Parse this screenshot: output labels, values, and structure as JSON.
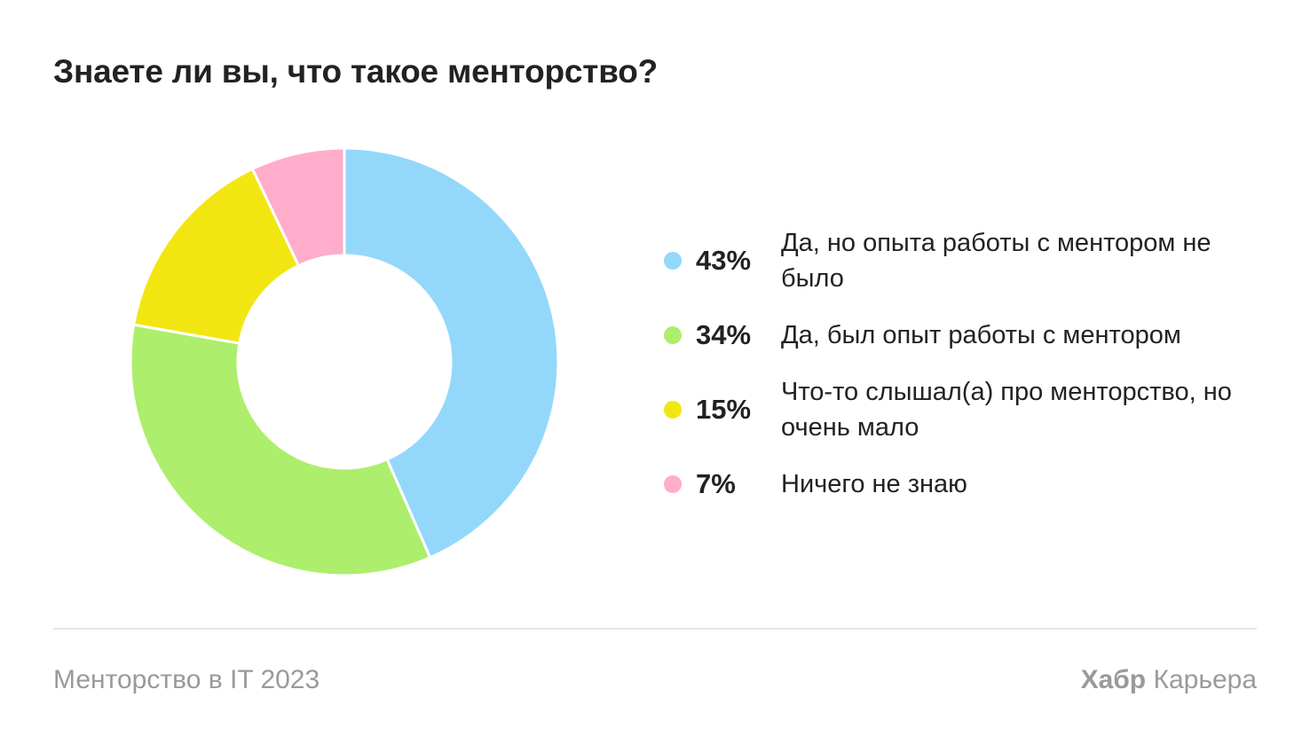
{
  "chart_data": {
    "type": "pie",
    "title": "Знаете ли вы, что такое менторство?",
    "categories": [
      "Да, но опыта работы с ментором не было",
      "Да, был опыт работы с ментором",
      "Что-то слышал(а) про менторство, но очень мало",
      "Ничего не знаю"
    ],
    "values": [
      43,
      34,
      15,
      7
    ],
    "value_labels": [
      "43%",
      "34%",
      "15%",
      "7%"
    ],
    "colors": [
      "#93d8fb",
      "#adee6c",
      "#f2e612",
      "#ffadcb"
    ],
    "legend_placement": "right",
    "donut": true
  },
  "footer": {
    "source": "Менторство в IT 2023",
    "brand": "Хабр",
    "brand_suffix": "Карьера"
  }
}
